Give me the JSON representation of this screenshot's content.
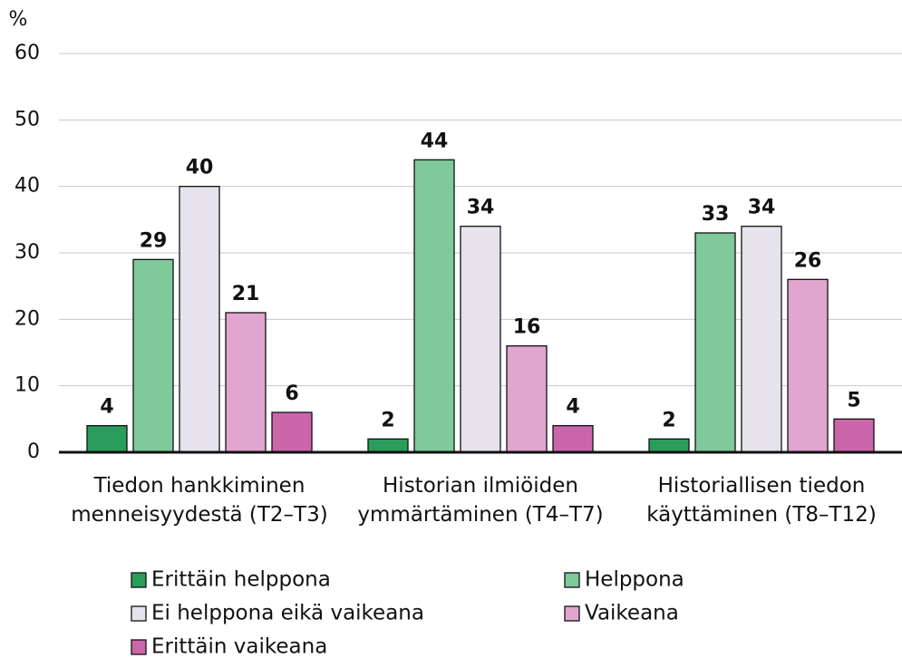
{
  "chart_data": {
    "type": "bar",
    "y_unit": "%",
    "categories": [
      "Tiedon hankkiminen menneisyydestä (T2–T3)",
      "Historian ilmiöiden ymmärtäminen (T4–T7)",
      "Historiallisen tiedon käyttäminen (T8–T12)"
    ],
    "series": [
      {
        "name": "Erittäin helppona",
        "color": "#2a9d5c",
        "values": [
          4,
          2,
          2
        ]
      },
      {
        "name": "Helppona",
        "color": "#7fc99b",
        "values": [
          29,
          44,
          33
        ]
      },
      {
        "name": "Ei helppona eikä vaikeana",
        "color": "#e6e3ec",
        "values": [
          40,
          34,
          34
        ]
      },
      {
        "name": "Vaikeana",
        "color": "#e0a6cf",
        "values": [
          21,
          16,
          26
        ]
      },
      {
        "name": "Erittäin vaikeana",
        "color": "#cc66ab",
        "values": [
          6,
          4,
          5
        ]
      }
    ],
    "ylim": [
      0,
      60
    ],
    "yticks": [
      0,
      10,
      20,
      30,
      40,
      50,
      60
    ],
    "grid": true
  }
}
